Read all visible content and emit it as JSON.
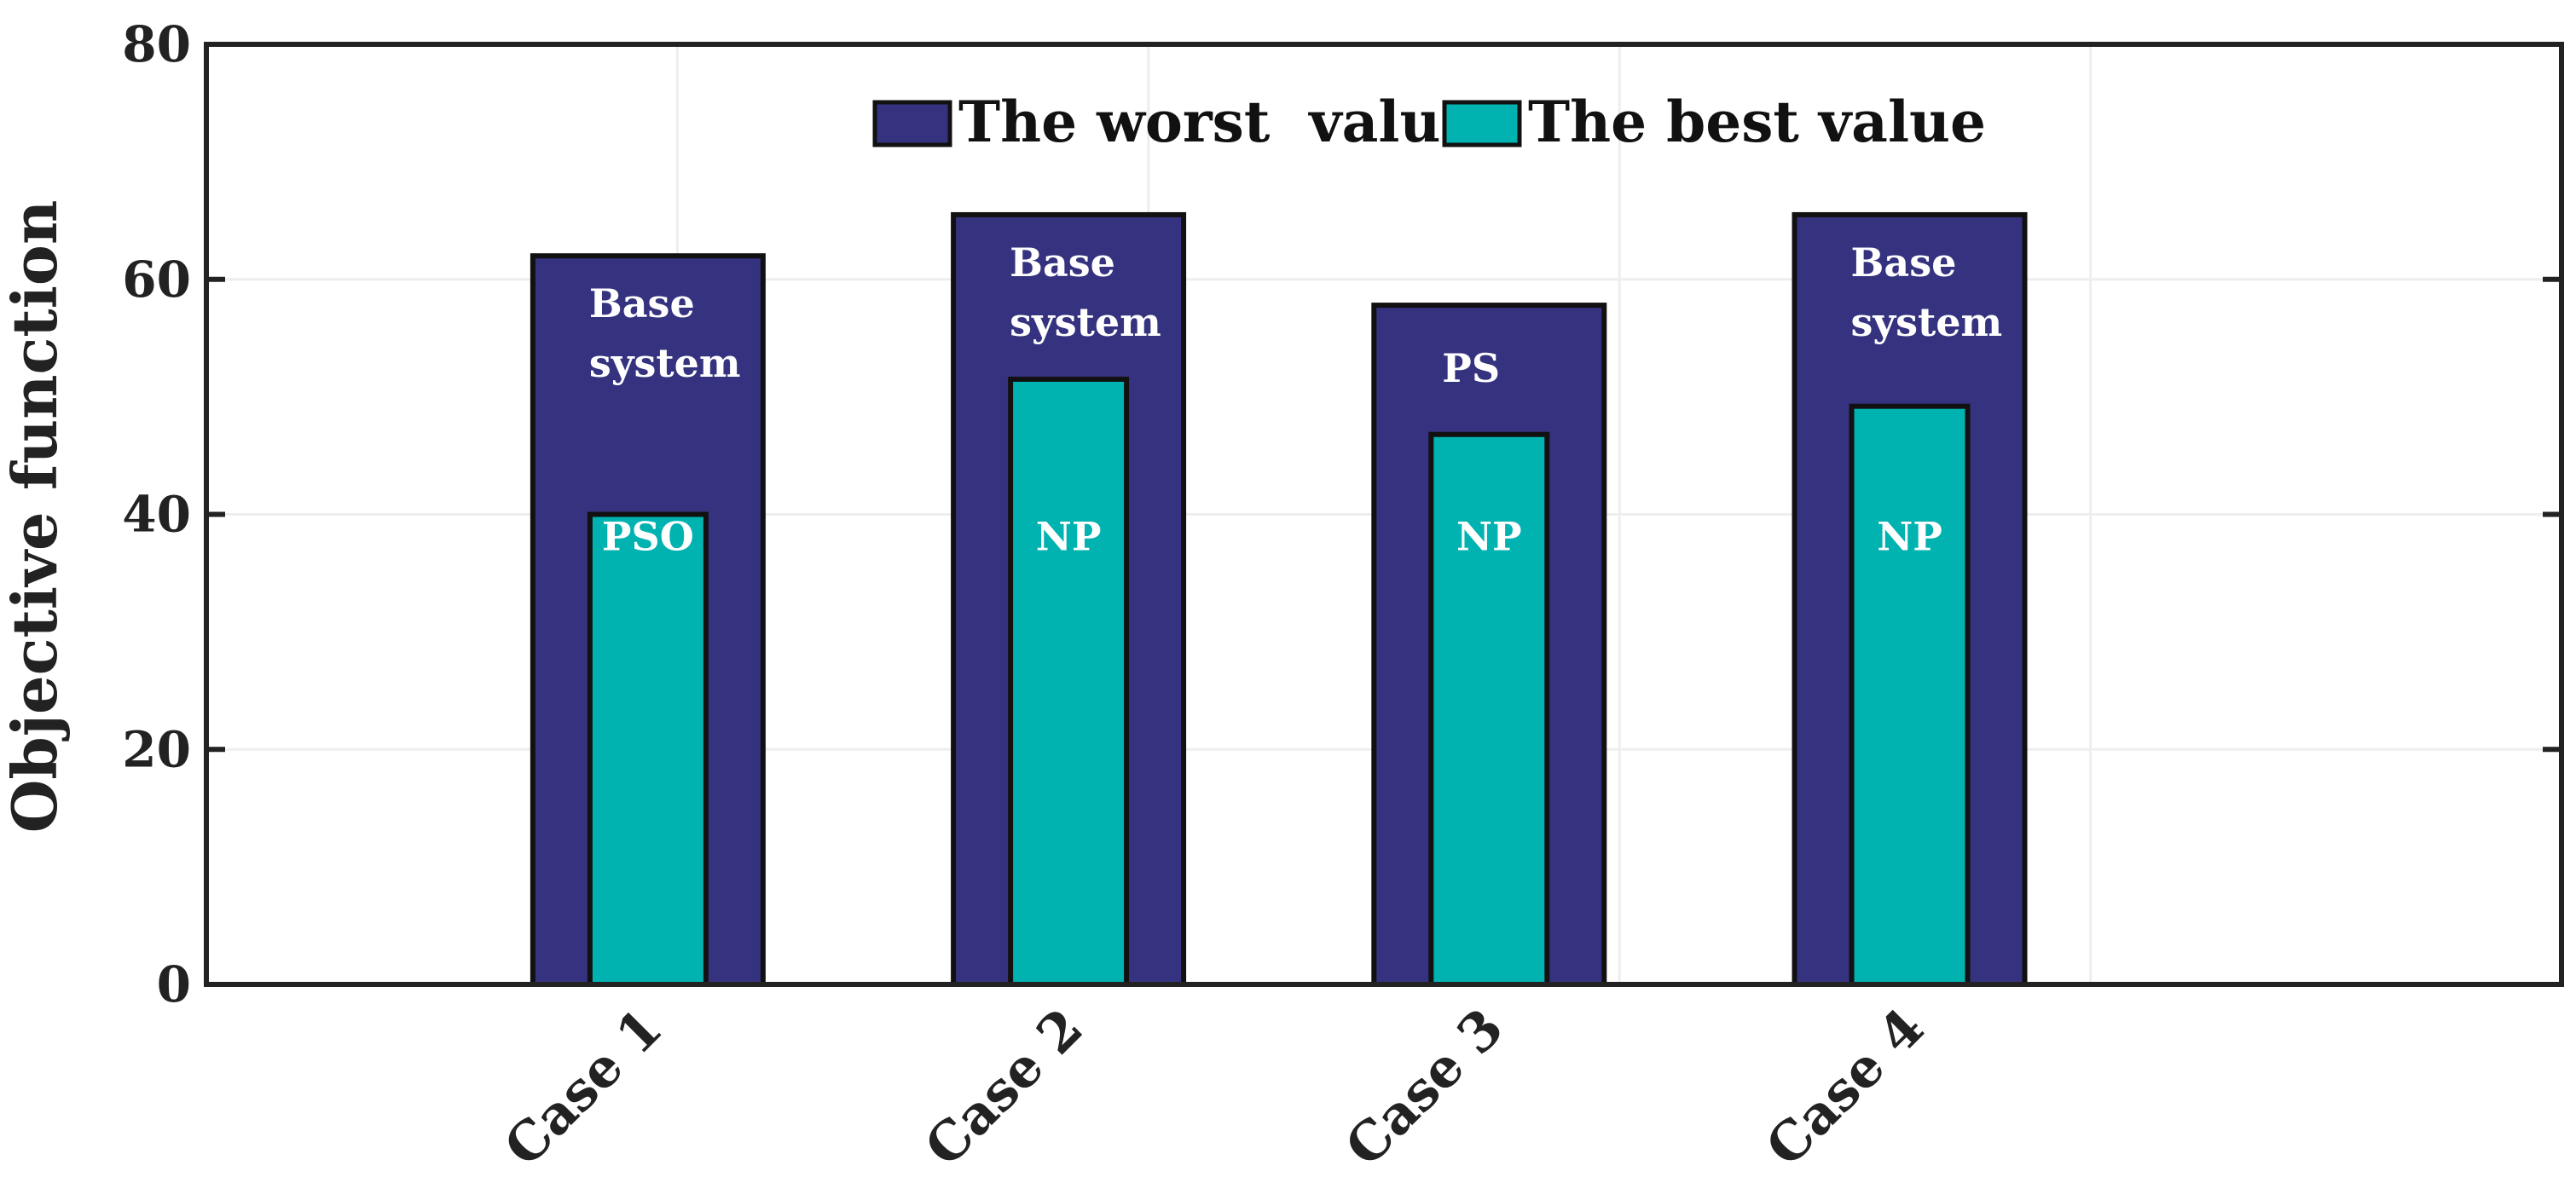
{
  "chart_data": {
    "type": "bar",
    "categories": [
      "Case 1",
      "Case 2",
      "Case 3",
      "Case 4"
    ],
    "series": [
      {
        "name": "The worst  value",
        "values": [
          62,
          65.5,
          57.8,
          65.5
        ],
        "color": "#35337f"
      },
      {
        "name": "The best value",
        "values": [
          40,
          51.5,
          46.8,
          49.2
        ],
        "color": "#00b2b0"
      }
    ],
    "bar_labels": {
      "worst": [
        [
          "Base",
          "system"
        ],
        [
          "Base",
          "system"
        ],
        [
          "PS"
        ],
        [
          "Base",
          "system"
        ]
      ],
      "best": [
        "PSO",
        "NP",
        "NP",
        "NP"
      ]
    },
    "title": "",
    "xlabel": "",
    "ylabel": "Objective function",
    "ylim": [
      0,
      80
    ],
    "yticks": [
      0,
      20,
      40,
      60,
      80
    ],
    "grid": true,
    "legend": "top-center"
  }
}
